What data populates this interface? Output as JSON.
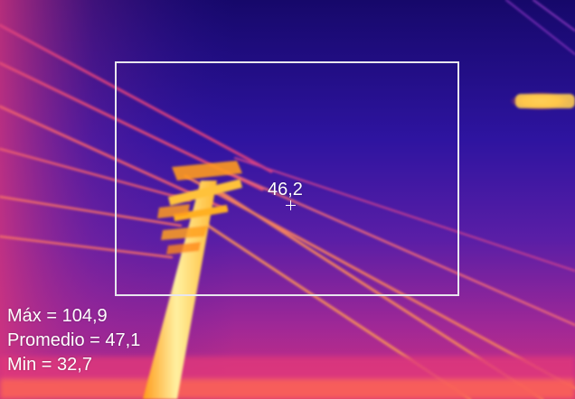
{
  "overlay": {
    "spot_value": "46,2",
    "stats": {
      "max": "Máx = 104,9",
      "avg": "Promedio = 47,1",
      "min": "Min = 32,7"
    }
  },
  "palette": {
    "sky_top": "#1a0a6e",
    "sky_mid": "#3a1a9a",
    "sky_low": "#9a2a9a",
    "warm": "#e0307a",
    "hot": "#ffb020",
    "hottest": "#fff4a0",
    "roi_border": "#e8e6ee"
  }
}
